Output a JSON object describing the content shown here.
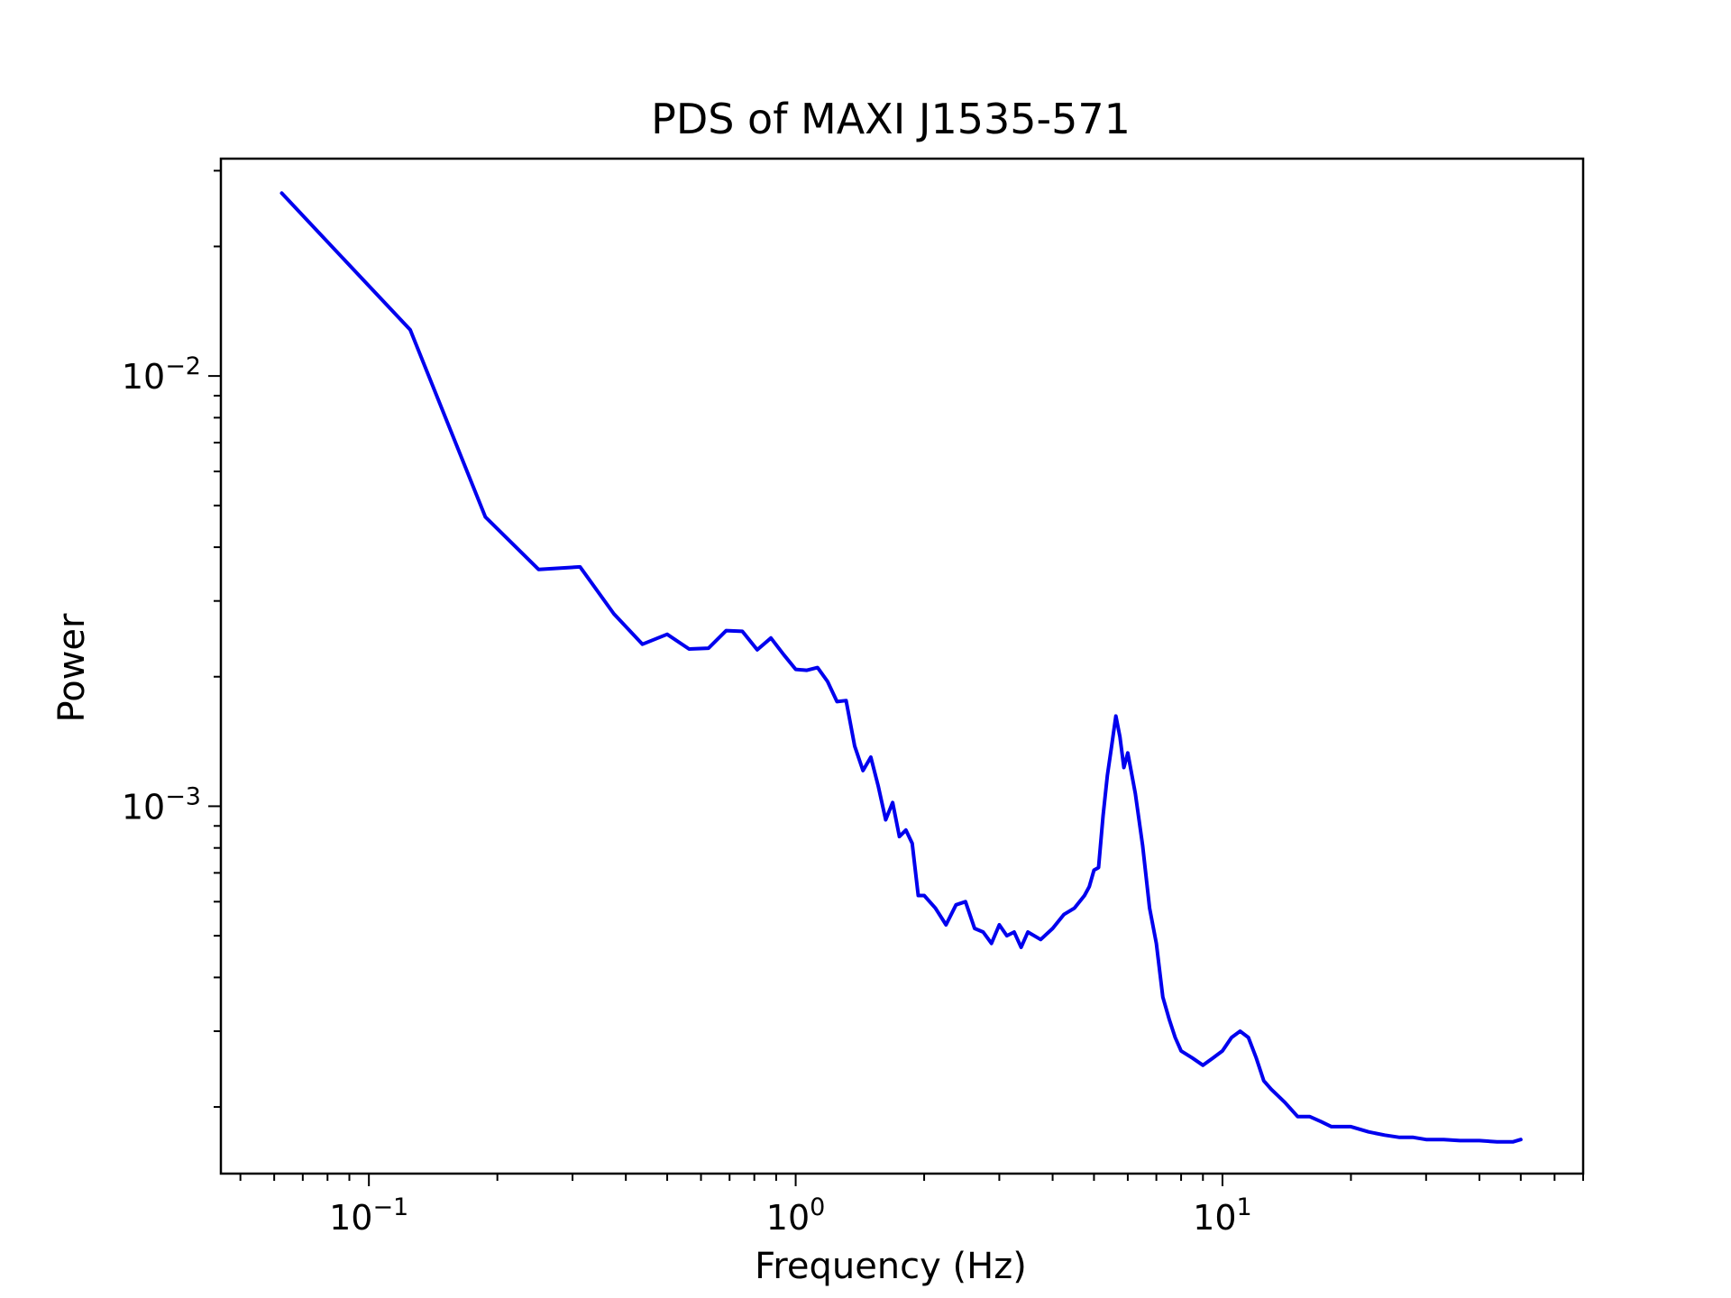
{
  "chart_data": {
    "type": "line",
    "title": "PDS of MAXI J1535-571",
    "xlabel": "Frequency (Hz)",
    "ylabel": "Power",
    "x_scale": "log",
    "y_scale": "log",
    "xlim": [
      0.045,
      70
    ],
    "ylim": [
      0.00014,
      0.032
    ],
    "x_ticks": [
      {
        "value": 0.1,
        "base": "10",
        "exp": "−1"
      },
      {
        "value": 1,
        "base": "10",
        "exp": "0"
      },
      {
        "value": 10,
        "base": "10",
        "exp": "1"
      }
    ],
    "y_ticks": [
      {
        "value": 0.01,
        "base": "10",
        "exp": "−2"
      },
      {
        "value": 0.001,
        "base": "10",
        "exp": "−3"
      }
    ],
    "grid": false,
    "legend": "none",
    "series": [
      {
        "color": "#0000ee",
        "x": [
          0.0625,
          0.125,
          0.1875,
          0.25,
          0.3125,
          0.375,
          0.4375,
          0.5,
          0.5625,
          0.625,
          0.6875,
          0.75,
          0.8125,
          0.875,
          0.9375,
          1.0,
          1.0625,
          1.125,
          1.1875,
          1.25,
          1.3125,
          1.375,
          1.4375,
          1.5,
          1.5625,
          1.625,
          1.6875,
          1.75,
          1.8125,
          1.875,
          1.9375,
          2.0,
          2.125,
          2.25,
          2.375,
          2.5,
          2.625,
          2.75,
          2.875,
          3.0,
          3.125,
          3.25,
          3.375,
          3.5,
          3.75,
          4.0,
          4.25,
          4.5,
          4.75,
          4.875,
          5.0,
          5.125,
          5.25,
          5.375,
          5.5,
          5.625,
          5.75,
          5.875,
          6.0,
          6.25,
          6.5,
          6.75,
          7.0,
          7.25,
          7.5,
          7.75,
          8.0,
          8.5,
          9.0,
          9.5,
          10.0,
          10.5,
          11.0,
          11.5,
          12.0,
          12.5,
          13.0,
          14.0,
          15.0,
          16.0,
          17.0,
          18.0,
          20.0,
          22.0,
          24.0,
          26.0,
          28.0,
          30.0,
          33.0,
          36.0,
          40.0,
          44.0,
          48.0,
          50.0
        ],
        "y": [
          0.0266,
          0.0128,
          0.0047,
          0.00355,
          0.0036,
          0.0028,
          0.00238,
          0.00251,
          0.00232,
          0.00233,
          0.00256,
          0.00255,
          0.00231,
          0.00246,
          0.00225,
          0.00208,
          0.00207,
          0.0021,
          0.00195,
          0.00175,
          0.00176,
          0.00138,
          0.00121,
          0.0013,
          0.00111,
          0.00093,
          0.00102,
          0.00085,
          0.00088,
          0.00082,
          0.00062,
          0.00062,
          0.00058,
          0.00053,
          0.00059,
          0.0006,
          0.00052,
          0.00051,
          0.00048,
          0.00053,
          0.0005,
          0.00051,
          0.00047,
          0.00051,
          0.00049,
          0.00052,
          0.00056,
          0.00058,
          0.00062,
          0.00065,
          0.00071,
          0.00072,
          0.00095,
          0.00118,
          0.00138,
          0.00162,
          0.00145,
          0.00123,
          0.00133,
          0.00107,
          0.00081,
          0.00058,
          0.00048,
          0.00036,
          0.00032,
          0.00029,
          0.00027,
          0.00026,
          0.00025,
          0.00026,
          0.00027,
          0.00029,
          0.0003,
          0.00029,
          0.00026,
          0.00023,
          0.00022,
          0.000205,
          0.00019,
          0.00019,
          0.000185,
          0.00018,
          0.00018,
          0.000175,
          0.000172,
          0.00017,
          0.00017,
          0.000168,
          0.000168,
          0.000167,
          0.000167,
          0.000166,
          0.000166,
          0.000168
        ]
      }
    ]
  }
}
